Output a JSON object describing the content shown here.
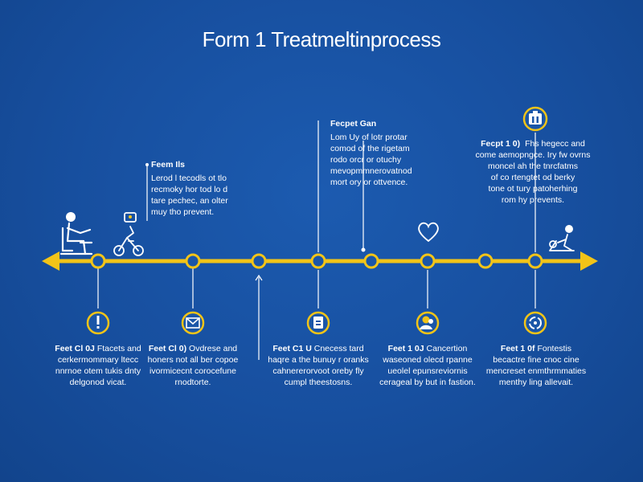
{
  "header": {
    "title": "Form 1 Treatmeltinprocess"
  },
  "colors": {
    "background": "#174f9f",
    "accent": "#f2c418",
    "line": "#ffffff"
  },
  "top_callouts": [
    {
      "heading": "Feem Ils",
      "lines": [
        "Lerod l tecodls ot tlo",
        "recmoky hor tod lo d",
        "tare pechec, an olter",
        "muy tho prevent."
      ]
    },
    {
      "heading": "Fecpet Gan",
      "lines": [
        "Lom Uy of lotr protar",
        "comod of the rigetam",
        "rodo orcr or otuchy",
        "mevopmmnerovatnod",
        "mort ory or ottvence."
      ]
    },
    {
      "heading": "Fecpt 1 0)",
      "lines": [
        "Fhs hegecc and",
        "come aemopngce. Iry fw ovrns",
        "moncel ah the tnrcfatms",
        "of co rtengtet od berky",
        "tone ot tury patoherhing",
        "rom hy prevents."
      ]
    }
  ],
  "bottom_callouts": [
    {
      "heading": "Feet Cl 0J",
      "heading_rest": "Ftacets and",
      "lines": [
        "cerkermommary ltecc",
        "nnrnoe otem tukis dnty",
        "delgonod vicat."
      ]
    },
    {
      "heading": "Feet Cl 0)",
      "heading_rest": "Ovdrese and",
      "lines": [
        "honers not all ber copoe",
        "ivormicecnt corocefune",
        "rnodtorte."
      ]
    },
    {
      "heading": "Feet C1 U",
      "heading_rest": "Cnecess tard",
      "lines": [
        "haqre a the bunuy r oranks",
        "cahnererorvoot oreby fly",
        "cumpl theestosns."
      ]
    },
    {
      "heading": "Feet 1 0J",
      "heading_rest": "Cancertion",
      "lines": [
        "waseoned olecd rpanne",
        "ueolel epunsreviornis",
        "cerageal by but in fastion."
      ]
    },
    {
      "heading": "Feet 1 0f",
      "heading_rest": "Fontestis",
      "lines": [
        "becactre fine cnoc cine",
        "mencreset enmthrmmaties",
        "menthy ling allevait."
      ]
    }
  ],
  "icons": {
    "top_right_badge": "clipboard-icon",
    "heart": "heart-icon",
    "person_left": "seated-person-icon",
    "child_bike": "child-bicycle-icon",
    "person_right": "reclining-person-icon",
    "bottom": [
      "exclamation-icon",
      "envelope-icon",
      "document-icon",
      "nurse-icon",
      "recycle-icon"
    ]
  }
}
